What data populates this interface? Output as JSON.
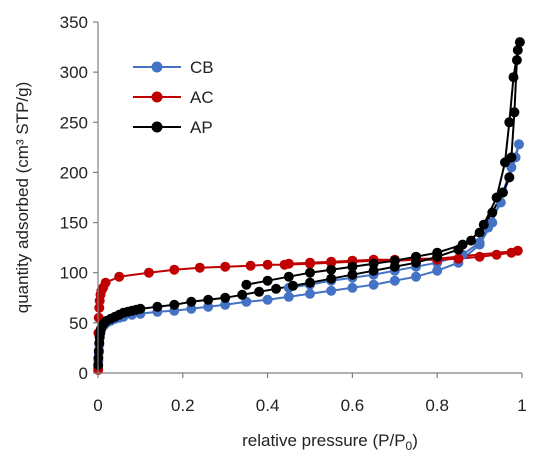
{
  "chart_data": {
    "type": "scatter",
    "xlabel": "relative pressure (P/P",
    "xlabel_sub": "0",
    "xlabel_end": ")",
    "ylabel": "quantity adsorbed (cm³ STP/g)",
    "xlim": [
      0,
      1
    ],
    "ylim": [
      0,
      350
    ],
    "xticks": [
      0,
      0.2,
      0.4,
      0.6,
      0.8,
      1
    ],
    "xtick_labels": [
      "0",
      "0.2",
      "0.4",
      "0.6",
      "0.8",
      "1"
    ],
    "yticks": [
      0,
      50,
      100,
      150,
      200,
      250,
      300,
      350
    ],
    "ytick_labels": [
      "0",
      "50",
      "100",
      "150",
      "200",
      "250",
      "300",
      "350"
    ],
    "grid": false,
    "legend_position": "top-left",
    "series": [
      {
        "name": "CB",
        "color": "#4472c4",
        "points": [
          [
            0.0005,
            5
          ],
          [
            0.001,
            12
          ],
          [
            0.002,
            20
          ],
          [
            0.003,
            28
          ],
          [
            0.004,
            35
          ],
          [
            0.006,
            40
          ],
          [
            0.008,
            44
          ],
          [
            0.01,
            46
          ],
          [
            0.015,
            48
          ],
          [
            0.02,
            50
          ],
          [
            0.03,
            52
          ],
          [
            0.04,
            54
          ],
          [
            0.05,
            55
          ],
          [
            0.06,
            56
          ],
          [
            0.08,
            58
          ],
          [
            0.1,
            59
          ],
          [
            0.14,
            61
          ],
          [
            0.18,
            62
          ],
          [
            0.22,
            64
          ],
          [
            0.26,
            66
          ],
          [
            0.3,
            68
          ],
          [
            0.35,
            71
          ],
          [
            0.4,
            73
          ],
          [
            0.45,
            76
          ],
          [
            0.5,
            79
          ],
          [
            0.55,
            82
          ],
          [
            0.6,
            85
          ],
          [
            0.65,
            88
          ],
          [
            0.7,
            92
          ],
          [
            0.75,
            96
          ],
          [
            0.8,
            102
          ],
          [
            0.85,
            110
          ],
          [
            0.9,
            128
          ],
          [
            0.93,
            150
          ],
          [
            0.955,
            180
          ],
          [
            0.975,
            205
          ],
          [
            0.993,
            228
          ],
          [
            0.985,
            215
          ],
          [
            0.97,
            195
          ],
          [
            0.95,
            170
          ],
          [
            0.92,
            145
          ],
          [
            0.9,
            130
          ],
          [
            0.86,
            118
          ],
          [
            0.8,
            110
          ],
          [
            0.75,
            106
          ],
          [
            0.7,
            102
          ],
          [
            0.65,
            98
          ],
          [
            0.6,
            95
          ],
          [
            0.55,
            92
          ],
          [
            0.5,
            88
          ],
          [
            0.45,
            85
          ]
        ]
      },
      {
        "name": "AC",
        "color": "#c00000",
        "points": [
          [
            0.0005,
            3
          ],
          [
            0.001,
            40
          ],
          [
            0.002,
            55
          ],
          [
            0.003,
            65
          ],
          [
            0.004,
            72
          ],
          [
            0.006,
            78
          ],
          [
            0.008,
            82
          ],
          [
            0.012,
            85
          ],
          [
            0.018,
            90
          ],
          [
            0.05,
            96
          ],
          [
            0.12,
            100
          ],
          [
            0.18,
            103
          ],
          [
            0.24,
            105
          ],
          [
            0.3,
            106
          ],
          [
            0.36,
            107
          ],
          [
            0.4,
            108
          ],
          [
            0.44,
            108
          ],
          [
            0.5,
            109
          ],
          [
            0.55,
            110
          ],
          [
            0.6,
            111
          ],
          [
            0.65,
            112
          ],
          [
            0.7,
            112
          ],
          [
            0.75,
            113
          ],
          [
            0.8,
            113
          ],
          [
            0.85,
            114
          ],
          [
            0.9,
            116
          ],
          [
            0.94,
            118
          ],
          [
            0.975,
            120
          ],
          [
            0.99,
            122
          ],
          [
            0.8,
            114
          ],
          [
            0.75,
            114
          ],
          [
            0.7,
            113
          ],
          [
            0.65,
            113
          ],
          [
            0.6,
            112
          ],
          [
            0.55,
            111
          ],
          [
            0.5,
            110
          ],
          [
            0.45,
            109
          ]
        ]
      },
      {
        "name": "AP",
        "color": "#000000",
        "points": [
          [
            0.0005,
            8
          ],
          [
            0.001,
            15
          ],
          [
            0.002,
            22
          ],
          [
            0.003,
            30
          ],
          [
            0.004,
            36
          ],
          [
            0.005,
            40
          ],
          [
            0.007,
            44
          ],
          [
            0.01,
            47
          ],
          [
            0.015,
            50
          ],
          [
            0.02,
            52
          ],
          [
            0.03,
            54
          ],
          [
            0.04,
            56
          ],
          [
            0.05,
            58
          ],
          [
            0.06,
            60
          ],
          [
            0.07,
            61
          ],
          [
            0.08,
            62
          ],
          [
            0.09,
            63
          ],
          [
            0.1,
            64
          ],
          [
            0.14,
            66
          ],
          [
            0.18,
            68
          ],
          [
            0.22,
            71
          ],
          [
            0.26,
            73
          ],
          [
            0.3,
            75
          ],
          [
            0.34,
            78
          ],
          [
            0.38,
            81
          ],
          [
            0.42,
            84
          ],
          [
            0.46,
            87
          ],
          [
            0.5,
            90
          ],
          [
            0.55,
            94
          ],
          [
            0.6,
            98
          ],
          [
            0.65,
            102
          ],
          [
            0.7,
            106
          ],
          [
            0.75,
            110
          ],
          [
            0.8,
            116
          ],
          [
            0.85,
            123
          ],
          [
            0.88,
            132
          ],
          [
            0.91,
            148
          ],
          [
            0.94,
            175
          ],
          [
            0.96,
            210
          ],
          [
            0.97,
            250
          ],
          [
            0.98,
            295
          ],
          [
            0.99,
            322
          ],
          [
            0.995,
            330
          ],
          [
            0.988,
            312
          ],
          [
            0.982,
            260
          ],
          [
            0.975,
            215
          ],
          [
            0.97,
            195
          ],
          [
            0.955,
            180
          ],
          [
            0.93,
            160
          ],
          [
            0.9,
            140
          ],
          [
            0.86,
            128
          ],
          [
            0.8,
            120
          ],
          [
            0.75,
            116
          ],
          [
            0.7,
            112
          ],
          [
            0.65,
            109
          ],
          [
            0.6,
            106
          ],
          [
            0.55,
            103
          ],
          [
            0.5,
            100
          ],
          [
            0.45,
            96
          ],
          [
            0.4,
            92
          ],
          [
            0.35,
            88
          ]
        ]
      }
    ]
  }
}
